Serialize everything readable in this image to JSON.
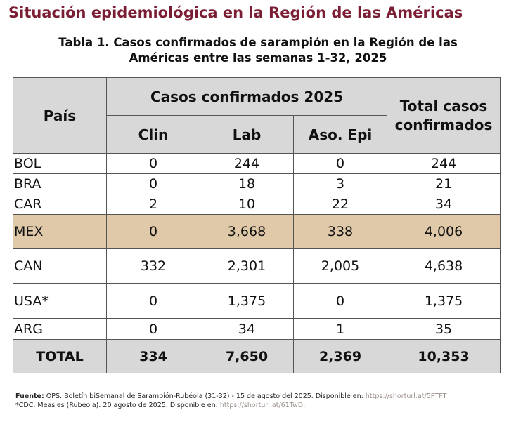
{
  "page_title": "Situación epidemiológica en la Región de las Américas",
  "table_caption": {
    "line1": "Tabla 1. Casos confirmados de sarampión en la Región de las",
    "line2": "Américas entre las semanas 1-32, 2025"
  },
  "table": {
    "header": {
      "country": "País",
      "group": "Casos confirmados 2025",
      "clin": "Clin",
      "lab": "Lab",
      "aso_epi": "Aso. Epi",
      "total_line1": "Total casos",
      "total_line2": "confirmados"
    },
    "rows": [
      {
        "country": "BOL",
        "clin": "0",
        "lab": "244",
        "aso_epi": "0",
        "total": "244"
      },
      {
        "country": "BRA",
        "clin": "0",
        "lab": "18",
        "aso_epi": "3",
        "total": "21"
      },
      {
        "country": "CAR",
        "clin": "2",
        "lab": "10",
        "aso_epi": "22",
        "total": "34"
      },
      {
        "country": "MEX",
        "clin": "0",
        "lab": "3,668",
        "aso_epi": "338",
        "total": "4,006"
      },
      {
        "country": "CAN",
        "clin": "332",
        "lab": "2,301",
        "aso_epi": "2,005",
        "total": "4,638"
      },
      {
        "country": "USA*",
        "clin": "0",
        "lab": "1,375",
        "aso_epi": "0",
        "total": "1,375"
      },
      {
        "country": "ARG",
        "clin": "0",
        "lab": "34",
        "aso_epi": "1",
        "total": "35"
      }
    ],
    "total_row": {
      "country": "TOTAL",
      "clin": "334",
      "lab": "7,650",
      "aso_epi": "2,369",
      "total": "10,353"
    },
    "highlight_color": "#dfc9a8",
    "header_bg": "#d8d8d8"
  },
  "footnotes": {
    "source_label": "Fuente:",
    "source_text": " OPS. Boletín biSemanal de Sarampión-Rubéola (31-32) - 15 de agosto del 2025. Disponible en: ",
    "source_link": "https://shorturl.at/5PTFT",
    "cdc_text": "*CDC. Measles (Rubéola). 20 agosto de 2025. Disponible en: ",
    "cdc_link": "https://shorturl.at/61TwD",
    "cdc_end": "."
  }
}
